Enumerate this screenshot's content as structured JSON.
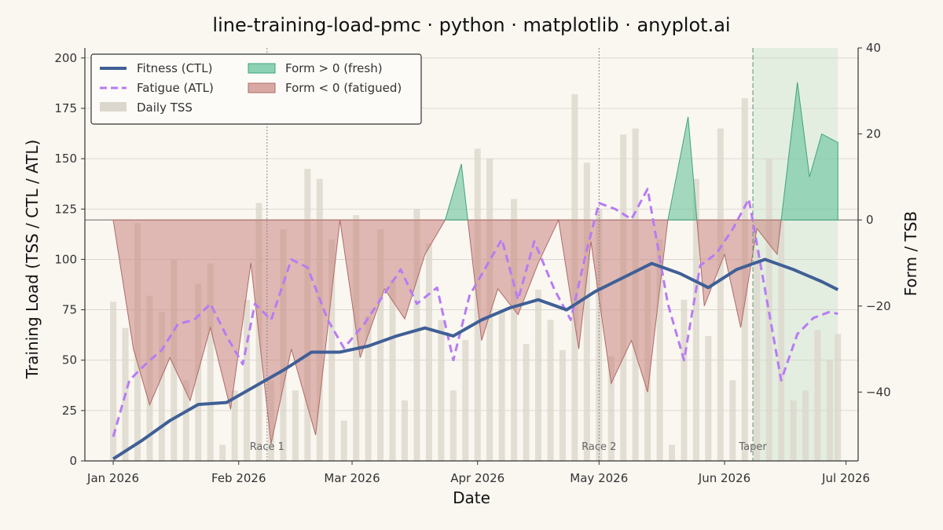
{
  "chart_data": {
    "type": "line",
    "title": "line-training-load-pmc · python · matplotlib · anyplot.ai",
    "xlabel": "Date",
    "ylabel": "Training Load (TSS / CTL / ATL)",
    "ylabel_right": "Form / TSB",
    "x_ticks": [
      "Jan 2026",
      "Feb 2026",
      "Mar 2026",
      "Apr 2026",
      "May 2026",
      "Jun 2026",
      "Jul 2026"
    ],
    "x_range": [
      "2025-12-25",
      "2026-07-04"
    ],
    "ylim": [
      0,
      205
    ],
    "y_ticks": [
      0,
      25,
      50,
      75,
      100,
      125,
      150,
      175,
      200
    ],
    "ylim_right": [
      -56,
      40
    ],
    "y_ticks_right": [
      -40,
      -20,
      0,
      20,
      40
    ],
    "grid": true,
    "legend_position": "top-left",
    "legend": {
      "fitness": "Fitness (CTL)",
      "fatigue": "Fatigue (ATL)",
      "tss": "Daily TSS",
      "fresh": "Form > 0 (fresh)",
      "fatigued": "Form < 0 (fatigued)"
    },
    "annotations": [
      {
        "label": "Race 1",
        "date": "2026-02-08"
      },
      {
        "label": "Race 2",
        "date": "2026-05-01"
      },
      {
        "label": "Taper",
        "date": "2026-06-08"
      }
    ],
    "taper_period": [
      "2026-06-08",
      "2026-06-29"
    ],
    "colors": {
      "ctl": "#3f5f96",
      "atl": "#b77cf2",
      "tss": "#dcd7cc",
      "fresh": "#5bbf95",
      "fatigued": "#c98580",
      "taper": "#cfe8d4"
    },
    "series": [
      {
        "name": "Fitness (CTL)",
        "x": [
          "2026-01-01",
          "2026-01-08",
          "2026-01-15",
          "2026-01-22",
          "2026-01-29",
          "2026-02-05",
          "2026-02-12",
          "2026-02-19",
          "2026-02-26",
          "2026-03-05",
          "2026-03-12",
          "2026-03-19",
          "2026-03-26",
          "2026-04-02",
          "2026-04-09",
          "2026-04-16",
          "2026-04-23",
          "2026-04-30",
          "2026-05-07",
          "2026-05-14",
          "2026-05-21",
          "2026-05-28",
          "2026-06-04",
          "2026-06-11",
          "2026-06-18",
          "2026-06-25",
          "2026-06-29"
        ],
        "values": [
          1,
          10,
          20,
          28,
          29,
          37,
          45,
          54,
          54,
          57,
          62,
          66,
          62,
          70,
          76,
          80,
          75,
          84,
          91,
          98,
          93,
          86,
          95,
          100,
          95,
          89,
          85
        ]
      },
      {
        "name": "Fatigue (ATL)",
        "x": [
          "2026-01-01",
          "2026-01-05",
          "2026-01-09",
          "2026-01-13",
          "2026-01-17",
          "2026-01-21",
          "2026-01-25",
          "2026-01-29",
          "2026-02-02",
          "2026-02-05",
          "2026-02-09",
          "2026-02-14",
          "2026-02-18",
          "2026-02-23",
          "2026-02-27",
          "2026-03-04",
          "2026-03-08",
          "2026-03-13",
          "2026-03-17",
          "2026-03-22",
          "2026-03-26",
          "2026-03-30",
          "2026-04-03",
          "2026-04-07",
          "2026-04-11",
          "2026-04-15",
          "2026-04-20",
          "2026-04-24",
          "2026-04-28",
          "2026-05-01",
          "2026-05-05",
          "2026-05-09",
          "2026-05-13",
          "2026-05-18",
          "2026-05-22",
          "2026-05-26",
          "2026-05-30",
          "2026-06-03",
          "2026-06-07",
          "2026-06-11",
          "2026-06-15",
          "2026-06-19",
          "2026-06-23",
          "2026-06-27",
          "2026-06-29"
        ],
        "values": [
          12,
          40,
          48,
          55,
          68,
          70,
          78,
          62,
          48,
          78,
          70,
          100,
          96,
          70,
          56,
          68,
          80,
          95,
          78,
          86,
          50,
          82,
          96,
          110,
          80,
          109,
          85,
          70,
          105,
          128,
          125,
          120,
          135,
          78,
          50,
          97,
          103,
          115,
          130,
          85,
          40,
          63,
          71,
          74,
          73
        ]
      },
      {
        "name": "Form / TSB",
        "x": [
          "2026-01-01",
          "2026-01-06",
          "2026-01-10",
          "2026-01-15",
          "2026-01-20",
          "2026-01-25",
          "2026-01-30",
          "2026-02-04",
          "2026-02-09",
          "2026-02-14",
          "2026-02-20",
          "2026-02-26",
          "2026-03-03",
          "2026-03-09",
          "2026-03-14",
          "2026-03-19",
          "2026-03-24",
          "2026-03-28",
          "2026-04-02",
          "2026-04-06",
          "2026-04-11",
          "2026-04-16",
          "2026-04-21",
          "2026-04-26",
          "2026-04-29",
          "2026-05-04",
          "2026-05-09",
          "2026-05-13",
          "2026-05-18",
          "2026-05-23",
          "2026-05-27",
          "2026-06-01",
          "2026-06-05",
          "2026-06-09",
          "2026-06-14",
          "2026-06-19",
          "2026-06-22",
          "2026-06-25",
          "2026-06-29"
        ],
        "values": [
          0,
          -30,
          -43,
          -32,
          -42,
          -25,
          -44,
          -10,
          -52,
          -30,
          -50,
          0,
          -32,
          -16,
          -23,
          -8,
          0,
          13,
          -28,
          -16,
          -22,
          -10,
          0,
          -30,
          -5,
          -38,
          -28,
          -40,
          0,
          24,
          -20,
          -8,
          -25,
          -2,
          -8,
          32,
          10,
          20,
          18
        ]
      },
      {
        "name": "Daily TSS",
        "x": [
          "2026-01-01",
          "2026-01-04",
          "2026-01-07",
          "2026-01-10",
          "2026-01-13",
          "2026-01-16",
          "2026-01-19",
          "2026-01-22",
          "2026-01-25",
          "2026-01-28",
          "2026-01-31",
          "2026-02-03",
          "2026-02-06",
          "2026-02-09",
          "2026-02-12",
          "2026-02-15",
          "2026-02-18",
          "2026-02-21",
          "2026-02-24",
          "2026-02-27",
          "2026-03-02",
          "2026-03-05",
          "2026-03-08",
          "2026-03-11",
          "2026-03-14",
          "2026-03-17",
          "2026-03-20",
          "2026-03-23",
          "2026-03-26",
          "2026-03-29",
          "2026-04-01",
          "2026-04-04",
          "2026-04-07",
          "2026-04-10",
          "2026-04-13",
          "2026-04-16",
          "2026-04-19",
          "2026-04-22",
          "2026-04-25",
          "2026-04-28",
          "2026-05-01",
          "2026-05-04",
          "2026-05-07",
          "2026-05-10",
          "2026-05-13",
          "2026-05-16",
          "2026-05-19",
          "2026-05-22",
          "2026-05-25",
          "2026-05-28",
          "2026-05-31",
          "2026-06-03",
          "2026-06-06",
          "2026-06-09",
          "2026-06-12",
          "2026-06-15",
          "2026-06-18",
          "2026-06-21",
          "2026-06-24",
          "2026-06-27",
          "2026-06-29"
        ],
        "values": [
          79,
          66,
          118,
          82,
          74,
          100,
          40,
          88,
          98,
          8,
          35,
          80,
          128,
          40,
          115,
          35,
          145,
          140,
          110,
          20,
          122,
          72,
          115,
          90,
          30,
          125,
          108,
          70,
          35,
          60,
          155,
          150,
          75,
          130,
          58,
          85,
          70,
          55,
          182,
          148,
          125,
          52,
          162,
          165,
          95,
          110,
          8,
          80,
          140,
          62,
          165,
          40,
          180,
          105,
          150,
          120,
          30,
          35,
          65,
          50,
          63
        ]
      }
    ]
  }
}
